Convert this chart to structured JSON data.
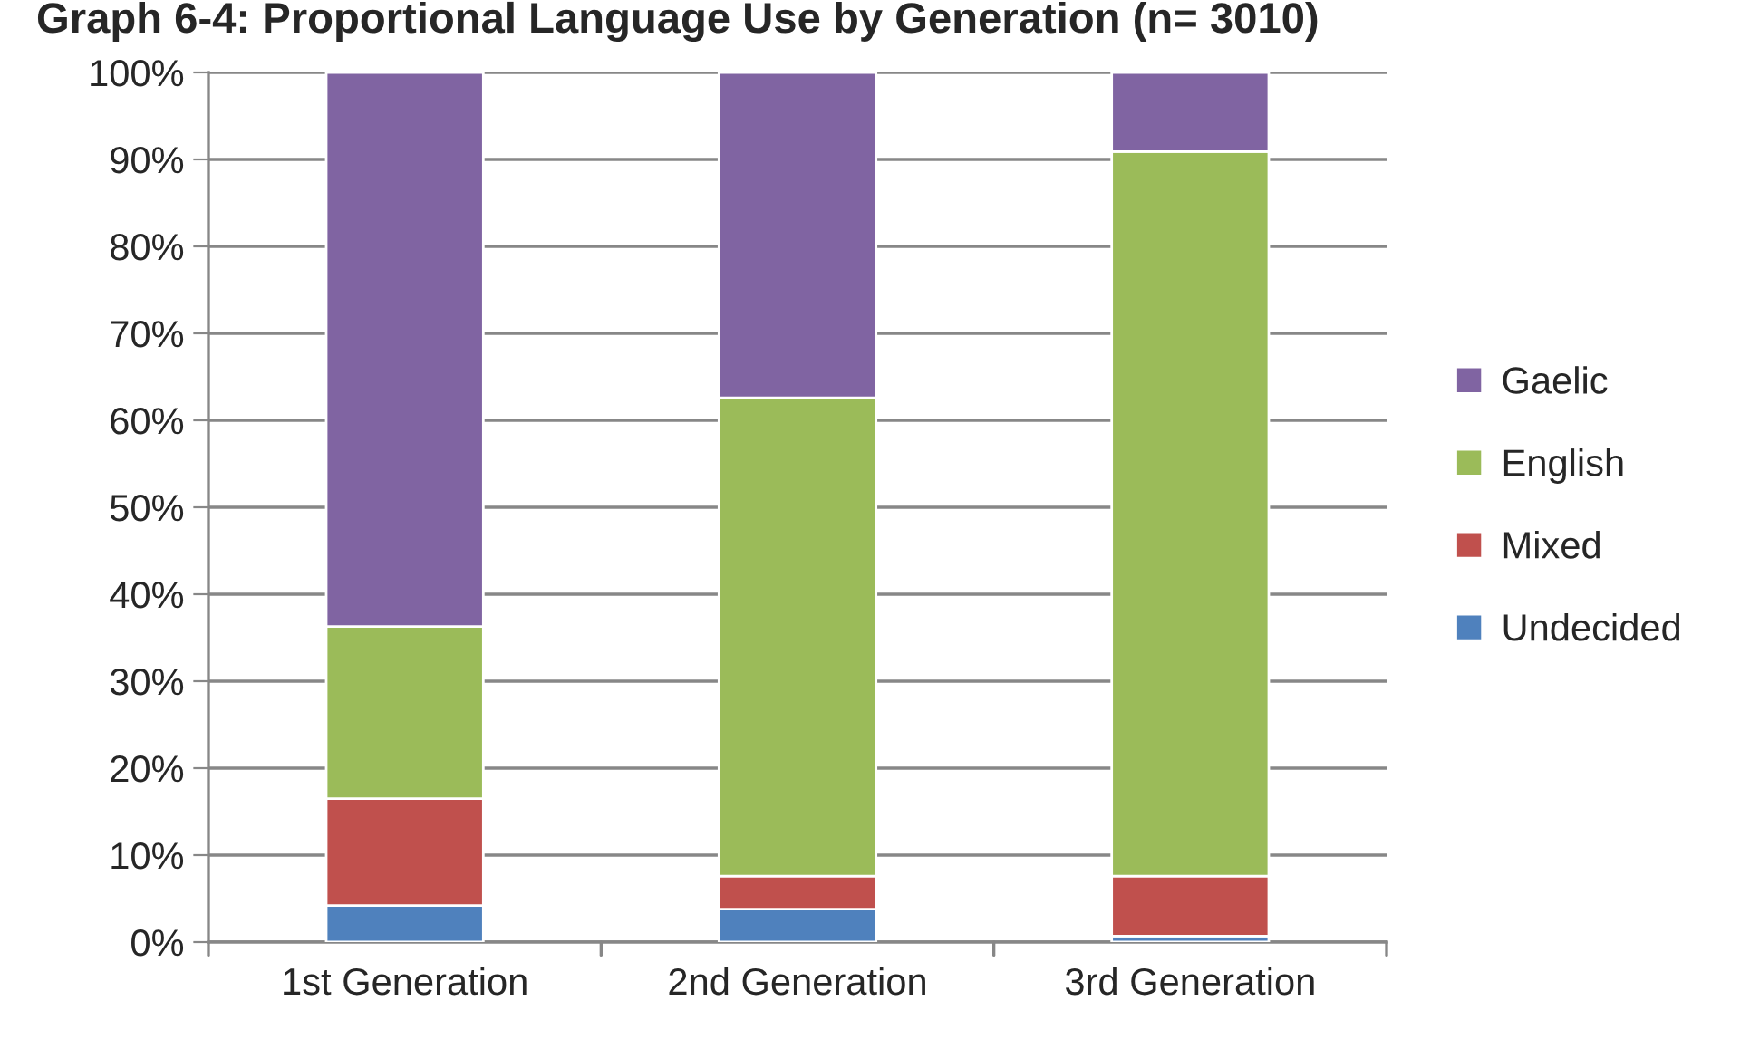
{
  "chart_data": {
    "type": "bar",
    "stacked": true,
    "title": "Graph 6-4: Proportional Language Use by Generation (n= 3010)",
    "categories": [
      "1st Generation",
      "2nd Generation",
      "3rd Generation"
    ],
    "series": [
      {
        "name": "Undecided",
        "color": "#4f81bd",
        "values": [
          4.2,
          3.8,
          0.7
        ]
      },
      {
        "name": "Mixed",
        "color": "#c0504d",
        "values": [
          12.3,
          3.8,
          6.9
        ]
      },
      {
        "name": "English",
        "color": "#9bbb59",
        "values": [
          19.8,
          55.0,
          83.3
        ]
      },
      {
        "name": "Gaelic",
        "color": "#8064a2",
        "values": [
          63.7,
          37.4,
          9.1
        ]
      }
    ],
    "ylim": [
      0,
      100
    ],
    "yticks": [
      {
        "value": 0,
        "label": "0%"
      },
      {
        "value": 10,
        "label": "10%"
      },
      {
        "value": 20,
        "label": "20%"
      },
      {
        "value": 30,
        "label": "30%"
      },
      {
        "value": 40,
        "label": "40%"
      },
      {
        "value": 50,
        "label": "50%"
      },
      {
        "value": 60,
        "label": "60%"
      },
      {
        "value": 70,
        "label": "70%"
      },
      {
        "value": 80,
        "label": "80%"
      },
      {
        "value": 90,
        "label": "90%"
      },
      {
        "value": 100,
        "label": "100%"
      }
    ],
    "grid": "y",
    "legend": "right"
  }
}
